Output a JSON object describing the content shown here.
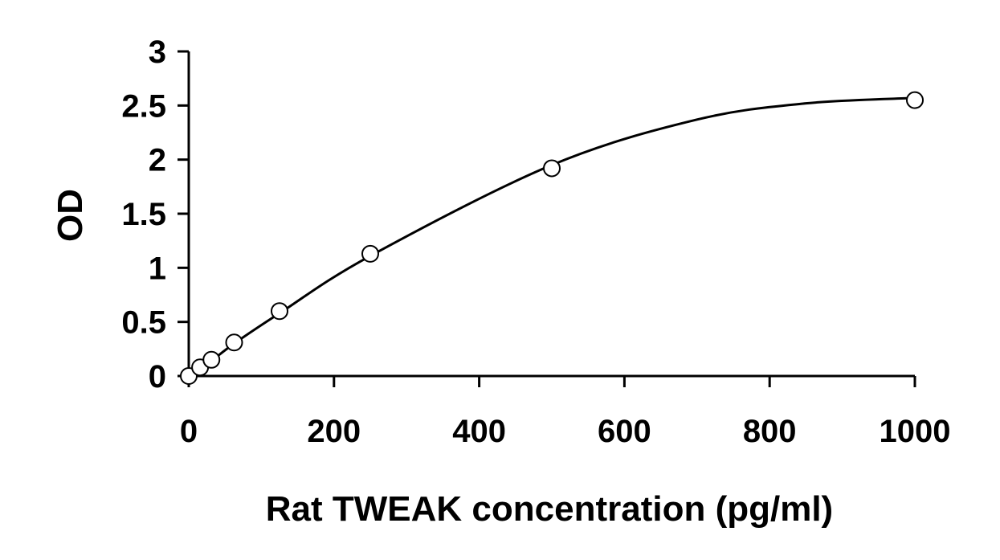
{
  "chart_data": {
    "type": "scatter",
    "title": "",
    "xlabel": "Rat TWEAK concentration (pg/ml)",
    "ylabel": "OD",
    "xlim": [
      0,
      1000
    ],
    "ylim": [
      0,
      3
    ],
    "xticks": [
      0,
      200,
      400,
      600,
      800,
      1000
    ],
    "yticks": [
      0,
      0.5,
      1,
      1.5,
      2,
      2.5,
      3
    ],
    "xtick_labels": [
      "0",
      "200",
      "400",
      "600",
      "800",
      "1000"
    ],
    "ytick_labels": [
      "0",
      "0.5",
      "1",
      "1.5",
      "2",
      "2.5",
      "3"
    ],
    "grid": false,
    "legend": "none",
    "series": [
      {
        "marker": "open-circle",
        "x": [
          0,
          15.6,
          31.25,
          62.5,
          125,
          250,
          500,
          1000
        ],
        "y": [
          0.0,
          0.08,
          0.15,
          0.31,
          0.6,
          1.13,
          1.92,
          2.55
        ]
      }
    ],
    "fit_curve": {
      "kind": "smooth trend line through points",
      "x": [
        0,
        15.6,
        31.25,
        62.5,
        125,
        250,
        500,
        700,
        850,
        1000
      ],
      "y": [
        0.0,
        0.07,
        0.14,
        0.3,
        0.58,
        1.11,
        1.95,
        2.37,
        2.52,
        2.57
      ]
    },
    "colors": {
      "axis": "#000000",
      "curve": "#000000",
      "marker_fill": "#ffffff",
      "marker_stroke": "#000000",
      "background": "#ffffff"
    }
  }
}
